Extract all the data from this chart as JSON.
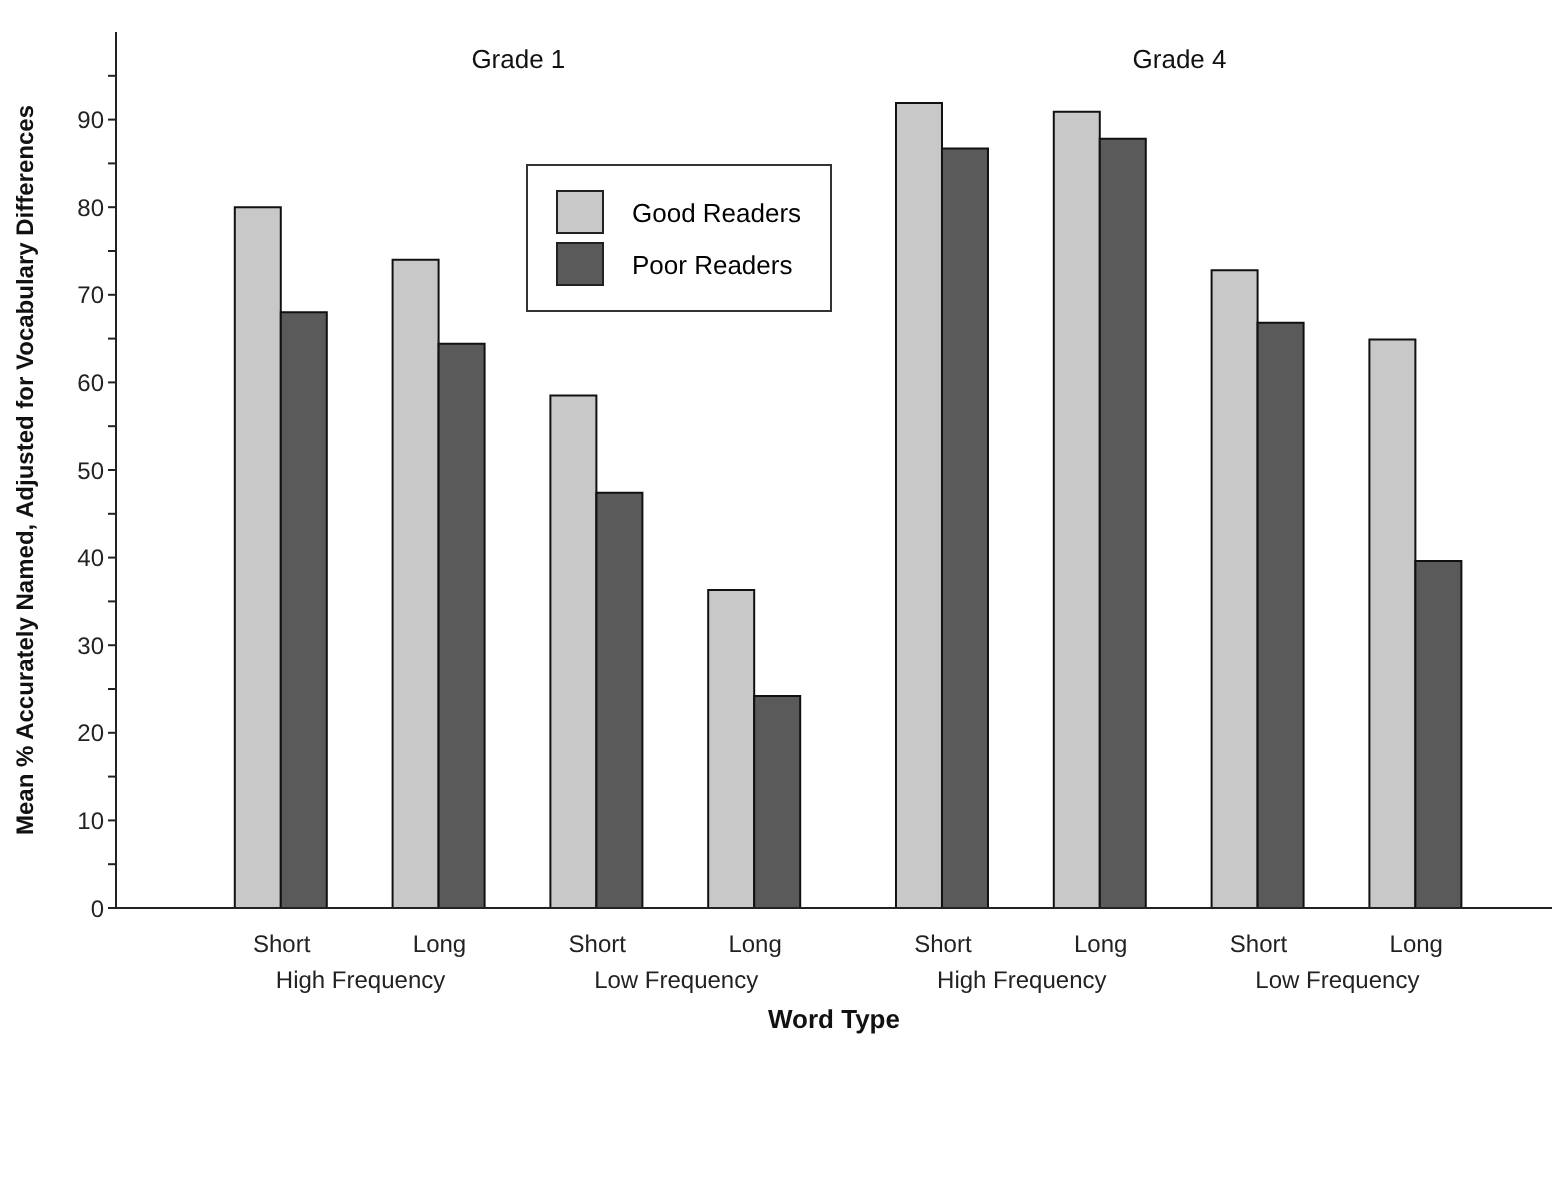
{
  "chart_data": {
    "type": "bar",
    "xlabel": "Word Type",
    "ylabel": "Mean % Accurately Named, Adjusted for Vocabulary Differences",
    "categories": [
      "Short",
      "Long",
      "Short",
      "Long",
      "Short",
      "Long",
      "Short",
      "Long"
    ],
    "series": [
      {
        "name": "Good Readers",
        "color": "#c8c8c8",
        "values": [
          80,
          74,
          58.5,
          36.3,
          91.9,
          90.9,
          72.8,
          64.9
        ]
      },
      {
        "name": "Poor Readers",
        "color": "#5a5a5a",
        "values": [
          68,
          64.4,
          47.4,
          24.2,
          86.7,
          87.8,
          66.8,
          39.6
        ]
      }
    ],
    "annotations": [
      "Grade 1",
      "Grade 4",
      "High Frequency",
      "Low Frequency",
      "High Frequency",
      "Low Frequency"
    ],
    "ylim": [
      0,
      100
    ],
    "yticks": [
      0,
      {
        "value": 5,
        "label": null
      },
      10,
      {
        "value": 15,
        "label": null
      },
      20,
      {
        "value": 25,
        "label": null
      },
      30,
      {
        "value": 35,
        "label": null
      },
      40,
      {
        "value": 45,
        "label": null
      },
      50,
      {
        "value": 55,
        "label": null
      },
      60,
      {
        "value": 65,
        "label": null
      },
      70,
      {
        "value": 75,
        "label": null
      },
      80,
      {
        "value": 85,
        "label": null
      },
      90,
      {
        "value": 95,
        "label": null
      }
    ],
    "grid": false,
    "legend": "top"
  }
}
